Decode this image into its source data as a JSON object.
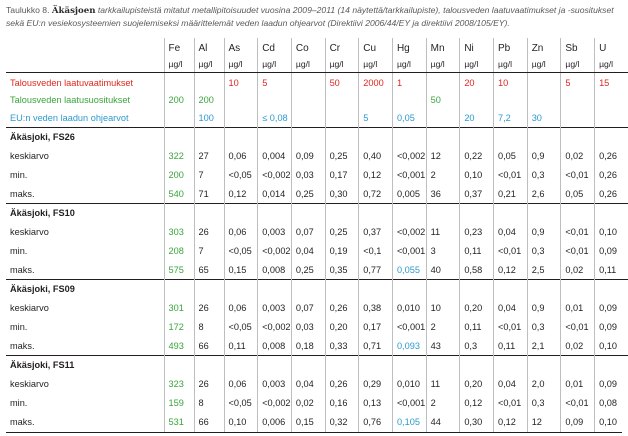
{
  "caption": {
    "lead": "Taulukko 8.",
    "river": "Äkäsjoen",
    "rest": "tarkkailupisteistä mitatut metallipitoisuudet vuosina 2009–2011 (14 näytettä/tarkkailupiste), talousveden laatuvaatimukset ja -suositukset sekä EU:n vesiekosysteemien suojelemiseksi määrittelemät veden laadun ohjearvot (Direktiivi 2006/44/EY ja direktiivi 2008/105/EY)."
  },
  "header": {
    "elements": [
      "Fe",
      "Al",
      "As",
      "Cd",
      "Co",
      "Cr",
      "Cu",
      "Hg",
      "Mn",
      "Ni",
      "Pb",
      "Zn",
      "Sb",
      "U"
    ],
    "units": [
      "µg/l",
      "µg/l",
      "µg/l",
      "µg/l",
      "µg/l",
      "µg/l",
      "µg/l",
      "µg/l",
      "µg/l",
      "µg/l",
      "µg/l",
      "µg/l",
      "µg/l",
      "µg/l"
    ]
  },
  "reference": {
    "requirements": {
      "label": "Talousveden laatuvaatimukset",
      "values": [
        "",
        "",
        "10",
        "5",
        "",
        "50",
        "2000",
        "1",
        "",
        "20",
        "10",
        "",
        "5",
        "15"
      ]
    },
    "recommendations": {
      "label": "Talousveden laatusuositukset",
      "values": [
        "200",
        "200",
        "",
        "",
        "",
        "",
        "",
        "",
        "50",
        "",
        "",
        "",
        "",
        ""
      ]
    },
    "eu_guidelines": {
      "label": "EU:n veden laadun ohjearvot",
      "values": [
        "",
        "100",
        "",
        "≤ 0,08",
        "",
        "",
        "5",
        "0,05",
        "",
        "20",
        "7,2",
        "30",
        "",
        ""
      ]
    }
  },
  "sections": [
    {
      "title": "Äkäsjoki, FS26",
      "rows": [
        {
          "label": "keskiarvo",
          "values": [
            "322",
            "27",
            "0,06",
            "0,004",
            "0,09",
            "0,25",
            "0,40",
            "<0,002",
            "12",
            "0,22",
            "0,05",
            "0,9",
            "0,02",
            "0,26"
          ]
        },
        {
          "label": "min.",
          "values": [
            "200",
            "7",
            "<0,05",
            "<0,002",
            "0,03",
            "0,17",
            "0,12",
            "<0,001",
            "2",
            "0,10",
            "<0,01",
            "0,3",
            "<0,01",
            "0,26"
          ]
        },
        {
          "label": "maks.",
          "values": [
            "540",
            "71",
            "0,12",
            "0,014",
            "0,25",
            "0,30",
            "0,72",
            "0,005",
            "36",
            "0,37",
            "0,21",
            "2,6",
            "0,05",
            "0,26"
          ]
        }
      ]
    },
    {
      "title": "Äkäsjoki, FS10",
      "rows": [
        {
          "label": "keskiarvo",
          "values": [
            "303",
            "26",
            "0,06",
            "0,003",
            "0,07",
            "0,25",
            "0,37",
            "<0,002",
            "11",
            "0,23",
            "0,04",
            "0,9",
            "<0,01",
            "0,10"
          ]
        },
        {
          "label": "min.",
          "values": [
            "208",
            "7",
            "<0,05",
            "<0,002",
            "0,04",
            "0,19",
            "<0,1",
            "<0,001",
            "3",
            "0,11",
            "<0,01",
            "0,3",
            "<0,01",
            "0,09"
          ]
        },
        {
          "label": "maks.",
          "values": [
            "575",
            "65",
            "0,15",
            "0,008",
            "0,25",
            "0,35",
            "0,77",
            "0,055",
            "40",
            "0,58",
            "0,12",
            "2,5",
            "0,02",
            "0,11"
          ]
        }
      ]
    },
    {
      "title": "Äkäsjoki, FS09",
      "rows": [
        {
          "label": "keskiarvo",
          "values": [
            "301",
            "26",
            "0,06",
            "0,003",
            "0,07",
            "0,26",
            "0,38",
            "0,010",
            "10",
            "0,20",
            "0,04",
            "0,9",
            "0,01",
            "0,09"
          ]
        },
        {
          "label": "min.",
          "values": [
            "172",
            "8",
            "<0,05",
            "<0,002",
            "0,03",
            "0,20",
            "0,17",
            "<0,001",
            "2",
            "0,11",
            "<0,01",
            "0,3",
            "<0,01",
            "0,09"
          ]
        },
        {
          "label": "maks.",
          "values": [
            "493",
            "66",
            "0,11",
            "0,008",
            "0,18",
            "0,33",
            "0,71",
            "0,093",
            "43",
            "0,3",
            "0,11",
            "2,1",
            "0,02",
            "0,10"
          ]
        }
      ]
    },
    {
      "title": "Äkäsjoki, FS11",
      "rows": [
        {
          "label": "keskiarvo",
          "values": [
            "323",
            "26",
            "0,06",
            "0,003",
            "0,04",
            "0,26",
            "0,29",
            "0,010",
            "11",
            "0,20",
            "0,04",
            "2,0",
            "0,01",
            "0,09"
          ]
        },
        {
          "label": "min.",
          "values": [
            "159",
            "8",
            "<0,05",
            "<0,002",
            "0,02",
            "0,16",
            "0,13",
            "<0,001",
            "2",
            "0,12",
            "<0,01",
            "0,3",
            "<0,01",
            "0,08"
          ]
        },
        {
          "label": "maks.",
          "values": [
            "531",
            "66",
            "0,10",
            "0,006",
            "0,15",
            "0,32",
            "0,76",
            "0,105",
            "44",
            "0,30",
            "0,12",
            "12",
            "0,09",
            "0,10"
          ]
        }
      ]
    }
  ],
  "colors": {
    "requirements": "#e0271f",
    "recommendations": "#3aa53b",
    "eu_guidelines": "#2c9ad1",
    "text": "#231f20",
    "rule": "#bcbec0"
  }
}
